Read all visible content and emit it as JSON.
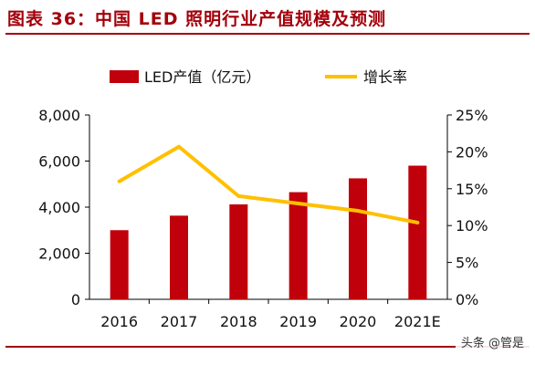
{
  "title": "图表 36：中国 LED 照明行业产值规模及预测",
  "watermark": "头条 @管是",
  "colors": {
    "bar": "#c0000b",
    "line": "#ffc000",
    "title": "#a3000a"
  },
  "chart_data": {
    "type": "bar",
    "categories": [
      "2016",
      "2017",
      "2018",
      "2019",
      "2020",
      "2021E"
    ],
    "series": [
      {
        "name": "LED产值（亿元）",
        "type": "bar",
        "axis": "left",
        "values": [
          3000,
          3630,
          4120,
          4650,
          5250,
          5800
        ]
      },
      {
        "name": "增长率",
        "type": "line",
        "axis": "right",
        "values": [
          0.16,
          0.207,
          0.14,
          0.13,
          0.12,
          0.104
        ]
      }
    ],
    "y_left": {
      "ylim": [
        0,
        8000
      ],
      "ticks": [
        "0",
        "2,000",
        "4,000",
        "6,000",
        "8,000"
      ]
    },
    "y_right": {
      "ylim": [
        0,
        0.25
      ],
      "ticks": [
        "0%",
        "5%",
        "10%",
        "15%",
        "20%",
        "25%"
      ]
    },
    "legend_position": "top"
  }
}
